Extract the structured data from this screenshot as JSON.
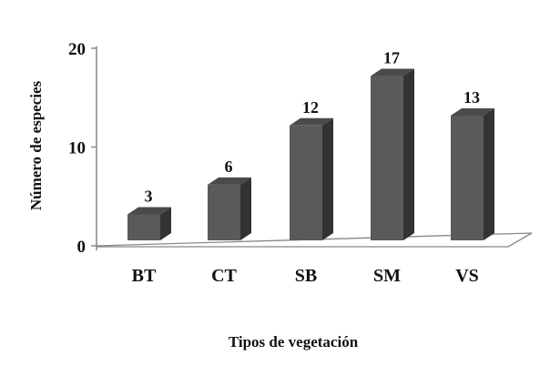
{
  "chart_data": {
    "type": "bar",
    "categories": [
      "BT",
      "CT",
      "SB",
      "SM",
      "VS"
    ],
    "values": [
      3,
      6,
      12,
      17,
      13
    ],
    "data_labels": [
      "3",
      "6",
      "12",
      "17",
      "13"
    ],
    "yticks": [
      "0",
      "10",
      "20"
    ],
    "ylim": [
      0,
      20
    ],
    "xlabel": "Tipos de vegetación",
    "ylabel": "Número de especies",
    "grid": false,
    "legend": "none",
    "style": "3d-column",
    "colors": {
      "bar_front": "#5a5a5a",
      "bar_side": "#333333",
      "bar_top": "#4a4a4a",
      "axis": "#888888"
    }
  }
}
